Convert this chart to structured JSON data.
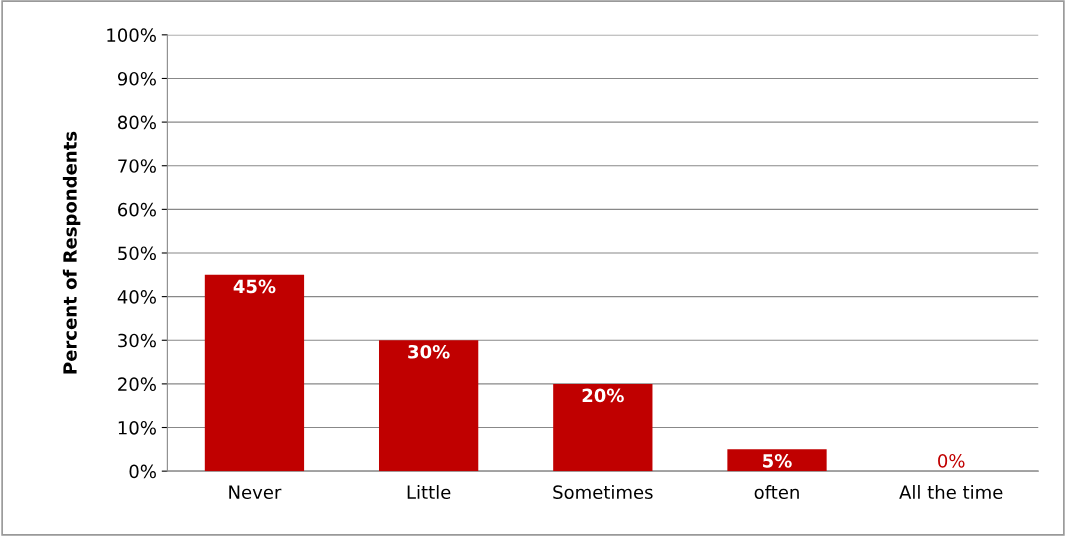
{
  "chart_data": {
    "type": "bar",
    "ylabel": "Percent of Respondents",
    "categories": [
      "Never",
      "Little",
      "Sometimes",
      "often",
      "All the time"
    ],
    "values": [
      45,
      30,
      20,
      5,
      0
    ],
    "color": "#c00000",
    "value_labels": [
      "45%",
      "30%",
      "20%",
      "5%",
      "0%"
    ],
    "ylim": [
      0,
      100
    ],
    "yticks": [
      {
        "value": 0,
        "label": "0%"
      },
      {
        "value": 10,
        "label": "10%"
      },
      {
        "value": 20,
        "label": "20%"
      },
      {
        "value": 30,
        "label": "30%"
      },
      {
        "value": 40,
        "label": "40%"
      },
      {
        "value": 50,
        "label": "50%"
      },
      {
        "value": 60,
        "label": "60%"
      },
      {
        "value": 70,
        "label": "70%"
      },
      {
        "value": 80,
        "label": "80%"
      },
      {
        "value": 90,
        "label": "90%"
      },
      {
        "value": 100,
        "label": "100%"
      }
    ],
    "grid": "y",
    "legend": false
  }
}
